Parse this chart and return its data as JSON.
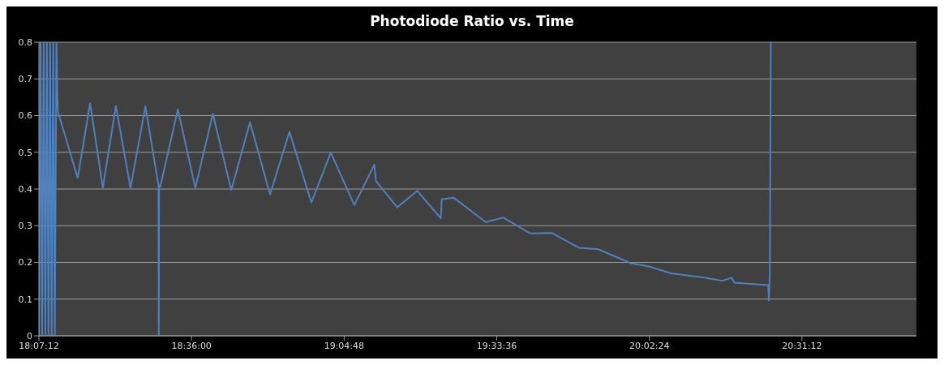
{
  "chart_data": {
    "type": "line",
    "title": "Photodiode Ratio vs. Time",
    "x": [
      18.12,
      18.125,
      18.13,
      18.135,
      18.14,
      18.145,
      18.15,
      18.155,
      18.16,
      18.165,
      18.17,
      18.175,
      18.178,
      18.18,
      18.242,
      18.281,
      18.321,
      18.362,
      18.408,
      18.455,
      18.496,
      18.497,
      18.498,
      18.502,
      18.557,
      18.612,
      18.667,
      18.725,
      18.784,
      18.847,
      18.908,
      18.977,
      19.038,
      19.112,
      19.175,
      19.18,
      19.247,
      19.31,
      19.384,
      19.387,
      19.425,
      19.525,
      19.581,
      19.665,
      19.734,
      19.818,
      19.879,
      19.981,
      20.039,
      20.108,
      20.2,
      20.269,
      20.299,
      20.307,
      20.414,
      20.416,
      20.419,
      20.422
    ],
    "values": [
      0,
      0.8,
      0,
      0.8,
      0,
      0.8,
      0,
      0.8,
      0,
      0.8,
      0,
      0.8,
      0.65,
      0.61,
      0.43,
      0.634,
      0.403,
      0.626,
      0.403,
      0.625,
      0.41,
      0,
      0.41,
      0.407,
      0.617,
      0.403,
      0.605,
      0.397,
      0.582,
      0.385,
      0.556,
      0.363,
      0.499,
      0.356,
      0.466,
      0.422,
      0.35,
      0.395,
      0.32,
      0.372,
      0.376,
      0.31,
      0.322,
      0.279,
      0.28,
      0.24,
      0.236,
      0.198,
      0.189,
      0.17,
      0.16,
      0.15,
      0.158,
      0.145,
      0.138,
      0.096,
      0.172,
      0.8
    ],
    "color": "#4f81bd",
    "xlim": [
      18.12,
      20.88
    ],
    "xticks": [
      {
        "value": 18.12,
        "label": "18:07:12"
      },
      {
        "value": 18.6,
        "label": "18:36:00"
      },
      {
        "value": 19.08,
        "label": "19:04:48"
      },
      {
        "value": 19.56,
        "label": "19:33:36"
      },
      {
        "value": 20.04,
        "label": "20:02:24"
      },
      {
        "value": 20.52,
        "label": "20:31:12"
      }
    ],
    "ylim": [
      0,
      0.8
    ],
    "yticks": [
      0,
      0.1,
      0.2,
      0.3,
      0.4,
      0.5,
      0.6,
      0.7,
      0.8
    ],
    "grid": "y",
    "marker": "none",
    "line_style": "solid"
  }
}
